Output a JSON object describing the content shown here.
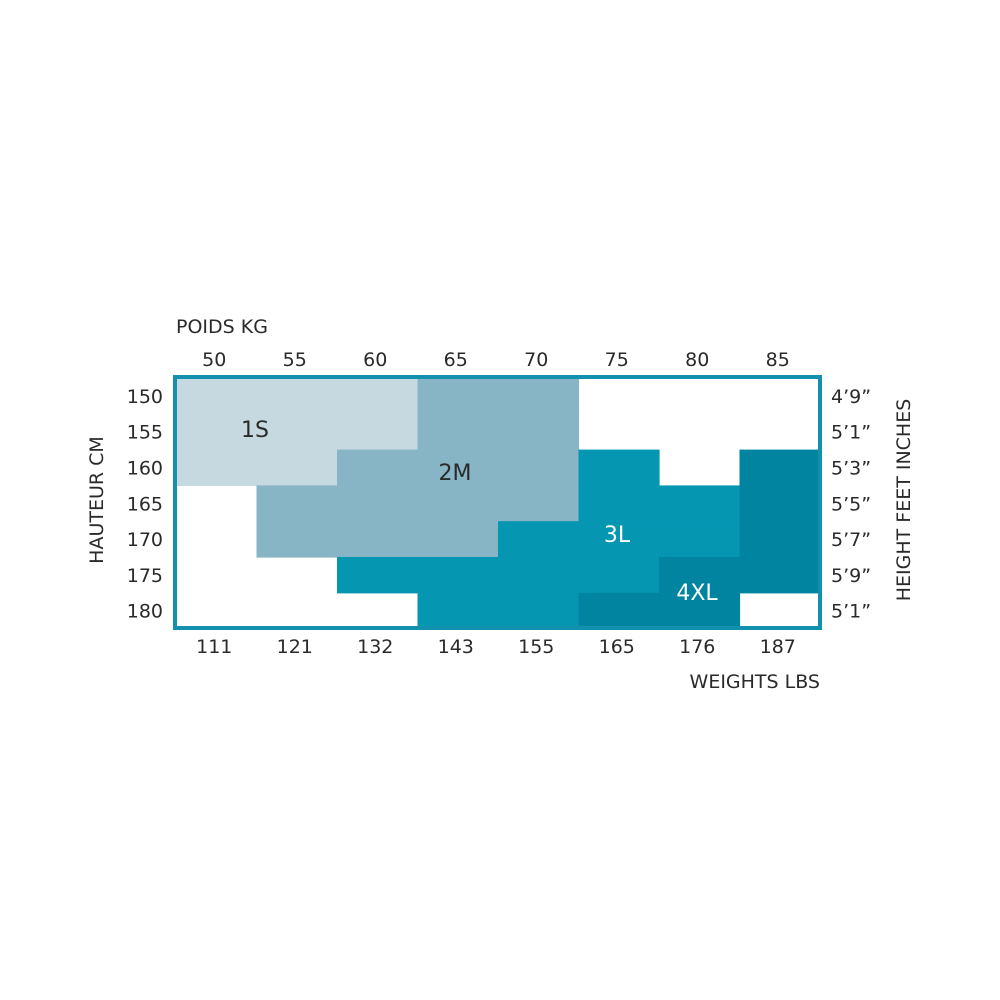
{
  "chart_data": {
    "type": "heatmap",
    "title": "",
    "x_top_label": "POIDS KG",
    "x_bottom_label": "WEIGHTS LBS",
    "y_left_label": "HAUTEUR CM",
    "y_right_label": "HEIGHT FEET INCHES",
    "x_kg": [
      "50",
      "55",
      "60",
      "65",
      "70",
      "75",
      "80",
      "85"
    ],
    "x_lbs": [
      "111",
      "121",
      "132",
      "143",
      "155",
      "165",
      "176",
      "187"
    ],
    "y_cm": [
      "150",
      "155",
      "160",
      "165",
      "170",
      "175",
      "180"
    ],
    "y_inches": [
      "4’9”",
      "5’1”",
      "5’3”",
      "5’5”",
      "5’7”",
      "5’9”",
      "5’1”"
    ],
    "sizes": [
      "1S",
      "2M",
      "3L",
      "4XL"
    ],
    "grid": [
      [
        "1S",
        "1S",
        "1S",
        "2M",
        "2M",
        "",
        "",
        ""
      ],
      [
        "1S",
        "1S",
        "1S",
        "2M",
        "2M",
        "",
        "",
        ""
      ],
      [
        "1S",
        "1S",
        "2M",
        "2M",
        "2M",
        "3L",
        "",
        "4XL"
      ],
      [
        "",
        "2M",
        "2M",
        "2M",
        "2M",
        "3L",
        "3L",
        "4XL"
      ],
      [
        "",
        "2M",
        "2M",
        "2M",
        "3L",
        "3L",
        "3L",
        "4XL"
      ],
      [
        "",
        "",
        "3L",
        "3L",
        "3L",
        "3L",
        "4XL",
        "4XL"
      ],
      [
        "",
        "",
        "",
        "3L",
        "3L",
        "4XL",
        "4XL",
        ""
      ]
    ],
    "colors": {
      "1S": "#c6d9e1",
      "2M": "#87b5c6",
      "3L": "#0596b2",
      "4XL": "#00849f",
      "border": "#1191ae"
    }
  }
}
